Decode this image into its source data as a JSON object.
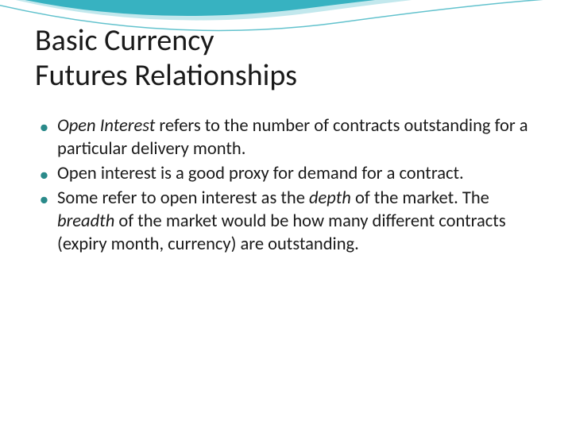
{
  "slide": {
    "title_line1": "Basic Currency",
    "title_line2": "Futures Relationships",
    "bullets": [
      {
        "segments": [
          {
            "text": "Open Interest",
            "italic": true
          },
          {
            "text": " refers to the number of contracts outstanding for a particular delivery month.",
            "italic": false
          }
        ]
      },
      {
        "segments": [
          {
            "text": "Open interest is a good proxy for demand for a contract.",
            "italic": false
          }
        ]
      },
      {
        "segments": [
          {
            "text": "Some refer to open interest as the ",
            "italic": false
          },
          {
            "text": "depth",
            "italic": true
          },
          {
            "text": " of the market. The ",
            "italic": false
          },
          {
            "text": "breadth",
            "italic": true
          },
          {
            "text": " of the market would be how many different contracts (expiry month, currency) are outstanding.",
            "italic": false
          }
        ]
      }
    ]
  },
  "style": {
    "background_color": "#ffffff",
    "title_color": "#1a1a1a",
    "title_fontsize": 38,
    "body_color": "#1a1a1a",
    "body_fontsize": 22.5,
    "bullet_color": "#2a8a8a",
    "swoosh_primary": "#1fa8b8",
    "swoosh_light": "#8fd6de",
    "swoosh_stroke": "#ffffff"
  }
}
